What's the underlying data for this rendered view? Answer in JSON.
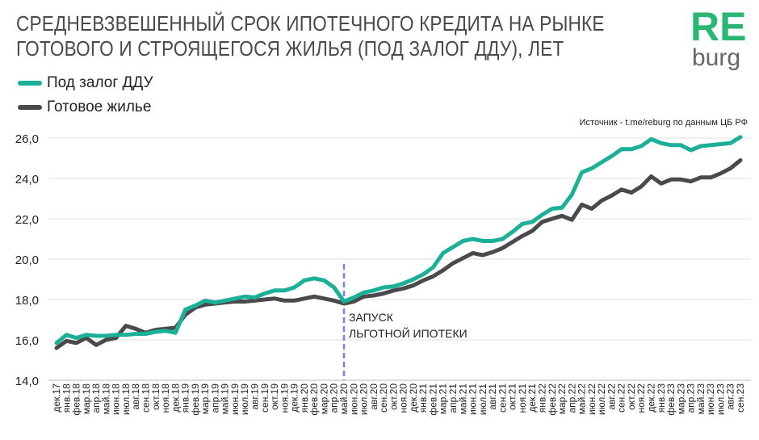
{
  "chart_data": {
    "type": "line",
    "title_line1": "СРЕДНЕВЗВЕШЕННЫЙ СРОК ИПОТЕЧНОГО КРЕДИТА НА РЫНКЕ",
    "title_line2": "ГОТОВОГО И СТРОЯЩЕГОСЯ ЖИЛЬЯ (ПОД ЗАЛОГ ДДУ), ЛЕТ",
    "source": "Источник  - t.me/reburg по данным  ЦБ РФ",
    "logo": {
      "top": "RE",
      "bottom": "burg"
    },
    "ylim": [
      14,
      26
    ],
    "yticks": [
      "14,0",
      "16,0",
      "18,0",
      "20,0",
      "22,0",
      "24,0",
      "26,0"
    ],
    "grid": true,
    "legend_placement": "top-left",
    "categories": [
      "дек.17",
      "янв.18",
      "фев.18",
      "мар.18",
      "апр.18",
      "май.18",
      "июн.18",
      "июл.18",
      "авг.18",
      "сен.18",
      "окт.18",
      "ноя.18",
      "дек.18",
      "янв.19",
      "фев.19",
      "мар.19",
      "апр.19",
      "май.19",
      "июн.19",
      "июл.19",
      "авг.19",
      "сен.19",
      "окт.19",
      "ноя.19",
      "дек.19",
      "янв.20",
      "фев.20",
      "мар.20",
      "апр.20",
      "май.20",
      "июн.20",
      "июл.20",
      "авг.20",
      "сен.20",
      "окт.20",
      "ноя.20",
      "дек.20",
      "янв.21",
      "фев.21",
      "мар.21",
      "апр.21",
      "май.21",
      "июн.21",
      "июл.21",
      "авг.21",
      "сен.21",
      "окт.21",
      "ноя.21",
      "дек.21",
      "янв.22",
      "фев.22",
      "мар.22",
      "апр.22",
      "май.22",
      "июн.22",
      "июл.22",
      "авг.22",
      "сен.22",
      "окт.22",
      "ноя.22",
      "дек.22",
      "янв.23",
      "фев.23",
      "мар.23",
      "апр.23",
      "май.23",
      "июн.23",
      "июл.23",
      "авг.23",
      "сен.23"
    ],
    "series": [
      {
        "name": "Под залог ДДУ",
        "color": "#1bb097",
        "values": [
          15.85,
          16.25,
          16.1,
          16.25,
          16.2,
          16.2,
          16.25,
          16.25,
          16.3,
          16.3,
          16.4,
          16.45,
          16.35,
          17.5,
          17.7,
          17.95,
          17.85,
          17.95,
          18.05,
          18.15,
          18.1,
          18.3,
          18.45,
          18.45,
          18.6,
          18.95,
          19.05,
          18.95,
          18.6,
          17.9,
          18.1,
          18.35,
          18.45,
          18.6,
          18.65,
          18.8,
          19.0,
          19.25,
          19.6,
          20.3,
          20.6,
          20.9,
          21.0,
          20.9,
          20.9,
          21.0,
          21.35,
          21.75,
          21.85,
          22.2,
          22.5,
          22.55,
          23.2,
          24.3,
          24.5,
          24.8,
          25.1,
          25.45,
          25.45,
          25.6,
          25.95,
          25.75,
          25.65,
          25.65,
          25.4,
          25.6,
          25.65,
          25.7,
          25.75,
          26.05
        ]
      },
      {
        "name": "Готовое жилье",
        "color": "#4a4a4c",
        "values": [
          15.6,
          15.95,
          15.85,
          16.1,
          15.75,
          16.0,
          16.1,
          16.7,
          16.55,
          16.35,
          16.5,
          16.55,
          16.6,
          17.25,
          17.6,
          17.75,
          17.8,
          17.85,
          17.9,
          17.9,
          17.95,
          18.0,
          18.05,
          17.95,
          17.95,
          18.05,
          18.15,
          18.05,
          17.95,
          17.8,
          17.9,
          18.15,
          18.2,
          18.3,
          18.45,
          18.55,
          18.7,
          18.95,
          19.15,
          19.45,
          19.8,
          20.05,
          20.3,
          20.2,
          20.35,
          20.55,
          20.85,
          21.15,
          21.4,
          21.85,
          22.0,
          22.15,
          21.95,
          22.7,
          22.5,
          22.9,
          23.15,
          23.45,
          23.3,
          23.6,
          24.1,
          23.75,
          23.95,
          23.95,
          23.85,
          24.05,
          24.05,
          24.25,
          24.5,
          24.9
        ]
      }
    ],
    "annotation": {
      "at": "май.20",
      "line1": "ЗАПУСК",
      "line2": "ЛЬГОТНОЙ ИПОТЕКИ",
      "color": "#7b7ff0"
    }
  }
}
